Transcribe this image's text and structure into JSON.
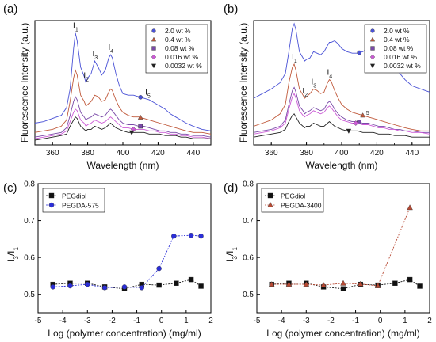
{
  "chart_data": [
    {
      "id": "a",
      "type": "line",
      "panel_label": "(a)",
      "xlabel": "Wavelength (nm)",
      "ylabel": "Fluorescence Intensity (a.u.)",
      "xlim": [
        350,
        450
      ],
      "xticks": [
        360,
        380,
        400,
        420,
        440
      ],
      "legend": {
        "placement": "top-right"
      },
      "peaks": [
        {
          "label": "I",
          "sub": "1",
          "x": 373
        },
        {
          "label": "I",
          "sub": "2",
          "x": 379
        },
        {
          "label": "I",
          "sub": "3",
          "x": 384
        },
        {
          "label": "I",
          "sub": "4",
          "x": 393
        },
        {
          "label": "I",
          "sub": "5",
          "x": 414
        }
      ],
      "x": [
        350,
        355,
        360,
        365,
        368,
        370,
        372,
        373,
        374,
        376,
        378,
        379,
        380,
        382,
        384,
        386,
        388,
        390,
        392,
        393,
        394,
        396,
        398,
        400,
        403,
        406,
        409,
        412,
        415,
        418,
        421,
        424,
        427,
        430,
        433,
        436,
        440,
        445,
        450
      ],
      "series": [
        {
          "name": "2.0 wt %",
          "color": "#4a52d6",
          "marker": "circle",
          "marker_x": 410,
          "values": [
            0.26,
            0.27,
            0.29,
            0.31,
            0.36,
            0.48,
            0.74,
            0.84,
            0.79,
            0.62,
            0.56,
            0.52,
            0.55,
            0.58,
            0.66,
            0.62,
            0.57,
            0.6,
            0.68,
            0.7,
            0.68,
            0.58,
            0.5,
            0.45,
            0.44,
            0.44,
            0.43,
            0.42,
            0.41,
            0.39,
            0.37,
            0.35,
            0.32,
            0.3,
            0.28,
            0.26,
            0.24,
            0.22,
            0.21
          ]
        },
        {
          "name": "0.4 wt %",
          "color": "#c05a3c",
          "marker": "triangle-up",
          "marker_x": 410,
          "values": [
            0.2,
            0.21,
            0.22,
            0.24,
            0.28,
            0.4,
            0.55,
            0.6,
            0.57,
            0.44,
            0.4,
            0.37,
            0.38,
            0.4,
            0.44,
            0.43,
            0.4,
            0.41,
            0.46,
            0.48,
            0.47,
            0.41,
            0.36,
            0.33,
            0.31,
            0.3,
            0.3,
            0.29,
            0.28,
            0.27,
            0.26,
            0.25,
            0.24,
            0.23,
            0.22,
            0.21,
            0.2,
            0.2,
            0.19
          ]
        },
        {
          "name": "0.08 wt %",
          "color": "#7a4aa8",
          "marker": "square",
          "marker_x": 410,
          "values": [
            0.17,
            0.18,
            0.19,
            0.2,
            0.23,
            0.31,
            0.4,
            0.43,
            0.41,
            0.33,
            0.3,
            0.28,
            0.29,
            0.3,
            0.32,
            0.31,
            0.3,
            0.31,
            0.34,
            0.35,
            0.34,
            0.31,
            0.28,
            0.26,
            0.25,
            0.25,
            0.24,
            0.24,
            0.23,
            0.22,
            0.21,
            0.21,
            0.2,
            0.2,
            0.19,
            0.19,
            0.18,
            0.18,
            0.17
          ]
        },
        {
          "name": "0.016 wt %",
          "color": "#cc5bd6",
          "marker": "diamond",
          "marker_x": 406,
          "values": [
            0.16,
            0.17,
            0.18,
            0.19,
            0.21,
            0.27,
            0.33,
            0.35,
            0.34,
            0.28,
            0.26,
            0.24,
            0.25,
            0.26,
            0.28,
            0.27,
            0.26,
            0.27,
            0.29,
            0.3,
            0.29,
            0.27,
            0.25,
            0.23,
            0.23,
            0.22,
            0.22,
            0.22,
            0.21,
            0.21,
            0.2,
            0.2,
            0.19,
            0.19,
            0.18,
            0.18,
            0.17,
            0.17,
            0.16
          ]
        },
        {
          "name": "0.0032 wt %",
          "color": "#222222",
          "marker": "triangle-down",
          "marker_x": 405,
          "values": [
            0.15,
            0.16,
            0.17,
            0.18,
            0.19,
            0.24,
            0.28,
            0.3,
            0.29,
            0.24,
            0.22,
            0.21,
            0.22,
            0.22,
            0.24,
            0.23,
            0.22,
            0.23,
            0.25,
            0.26,
            0.25,
            0.23,
            0.22,
            0.21,
            0.2,
            0.2,
            0.2,
            0.2,
            0.19,
            0.19,
            0.19,
            0.18,
            0.18,
            0.18,
            0.17,
            0.17,
            0.16,
            0.16,
            0.16
          ]
        }
      ]
    },
    {
      "id": "b",
      "type": "line",
      "panel_label": "(b)",
      "xlabel": "Wavelength (nm)",
      "ylabel": "Fluorescence Intensity (a.u.)",
      "xlim": [
        350,
        450
      ],
      "xticks": [
        360,
        380,
        400,
        420,
        440
      ],
      "legend": {
        "placement": "top-right"
      },
      "peaks": [
        {
          "label": "I",
          "sub": "1",
          "x": 373
        },
        {
          "label": "I",
          "sub": "2",
          "x": 379
        },
        {
          "label": "I",
          "sub": "3",
          "x": 384
        },
        {
          "label": "I",
          "sub": "4",
          "x": 393
        },
        {
          "label": "I",
          "sub": "5",
          "x": 414
        }
      ],
      "x": [
        350,
        355,
        360,
        365,
        368,
        370,
        372,
        373,
        374,
        376,
        378,
        379,
        380,
        382,
        384,
        386,
        388,
        390,
        392,
        393,
        394,
        396,
        398,
        400,
        403,
        406,
        409,
        412,
        415,
        418,
        421,
        424,
        427,
        430,
        433,
        436,
        440,
        445,
        450
      ],
      "series": [
        {
          "name": "2.0 wt %",
          "color": "#4a52d6",
          "marker": "circle",
          "marker_x": 410,
          "values": [
            0.42,
            0.45,
            0.48,
            0.52,
            0.58,
            0.72,
            0.87,
            0.9,
            0.86,
            0.72,
            0.68,
            0.66,
            0.67,
            0.68,
            0.72,
            0.71,
            0.7,
            0.72,
            0.76,
            0.78,
            0.78,
            0.79,
            0.77,
            0.74,
            0.72,
            0.71,
            0.71,
            0.72,
            0.74,
            0.76,
            0.78,
            0.76,
            0.7,
            0.64,
            0.58,
            0.54,
            0.5,
            0.48,
            0.46
          ]
        },
        {
          "name": "0.4 wt %",
          "color": "#c05a3c",
          "marker": "triangle-up",
          "marker_x": 412,
          "values": [
            0.24,
            0.26,
            0.28,
            0.32,
            0.38,
            0.52,
            0.62,
            0.64,
            0.6,
            0.48,
            0.44,
            0.42,
            0.43,
            0.45,
            0.48,
            0.47,
            0.45,
            0.46,
            0.52,
            0.54,
            0.53,
            0.47,
            0.42,
            0.38,
            0.35,
            0.33,
            0.32,
            0.31,
            0.3,
            0.29,
            0.28,
            0.27,
            0.26,
            0.25,
            0.24,
            0.23,
            0.22,
            0.21,
            0.21
          ]
        },
        {
          "name": "0.08 wt %",
          "color": "#7a4aa8",
          "marker": "square",
          "marker_x": 410,
          "values": [
            0.2,
            0.21,
            0.22,
            0.24,
            0.28,
            0.38,
            0.47,
            0.49,
            0.46,
            0.37,
            0.34,
            0.32,
            0.33,
            0.34,
            0.36,
            0.35,
            0.34,
            0.35,
            0.39,
            0.4,
            0.39,
            0.35,
            0.32,
            0.3,
            0.28,
            0.27,
            0.27,
            0.26,
            0.26,
            0.25,
            0.24,
            0.24,
            0.23,
            0.22,
            0.22,
            0.21,
            0.21,
            0.2,
            0.2
          ]
        },
        {
          "name": "0.016 wt %",
          "color": "#cc5bd6",
          "marker": "diamond",
          "marker_x": 408,
          "values": [
            0.19,
            0.2,
            0.21,
            0.23,
            0.26,
            0.35,
            0.43,
            0.45,
            0.42,
            0.34,
            0.31,
            0.3,
            0.31,
            0.32,
            0.34,
            0.33,
            0.32,
            0.33,
            0.36,
            0.37,
            0.36,
            0.33,
            0.3,
            0.28,
            0.27,
            0.26,
            0.26,
            0.25,
            0.25,
            0.24,
            0.23,
            0.23,
            0.22,
            0.22,
            0.21,
            0.21,
            0.2,
            0.2,
            0.19
          ]
        },
        {
          "name": "0.0032 wt %",
          "color": "#222222",
          "marker": "triangle-down",
          "marker_x": 404,
          "values": [
            0.17,
            0.18,
            0.19,
            0.2,
            0.22,
            0.27,
            0.31,
            0.32,
            0.3,
            0.26,
            0.24,
            0.23,
            0.24,
            0.24,
            0.26,
            0.25,
            0.24,
            0.24,
            0.26,
            0.27,
            0.26,
            0.24,
            0.23,
            0.22,
            0.21,
            0.21,
            0.21,
            0.2,
            0.2,
            0.2,
            0.19,
            0.19,
            0.19,
            0.18,
            0.18,
            0.18,
            0.17,
            0.17,
            0.17
          ]
        }
      ]
    },
    {
      "id": "c",
      "type": "line",
      "panel_label": "(c)",
      "xlabel": "Log (polymer concentration) (mg/ml)",
      "ylabel": "I3/I1",
      "xlim": [
        -5,
        2
      ],
      "ylim": [
        0.45,
        0.8
      ],
      "xticks": [
        -5,
        -4,
        -3,
        -2,
        -1,
        0,
        1,
        2
      ],
      "yticks": [
        0.5,
        0.6,
        0.7,
        0.8
      ],
      "legend": {
        "placement": "top-left"
      },
      "series": [
        {
          "name": "PEGdiol",
          "color": "#111111",
          "marker": "square",
          "x": [
            -4.4,
            -3.7,
            -3.0,
            -2.3,
            -1.5,
            -0.8,
            -0.1,
            0.6,
            1.2,
            1.6
          ],
          "values": [
            0.527,
            0.53,
            0.53,
            0.52,
            0.515,
            0.527,
            0.525,
            0.53,
            0.54,
            0.522
          ]
        },
        {
          "name": "PEGDA-575",
          "color": "#2b2ed8",
          "marker": "circle",
          "x": [
            -4.4,
            -3.7,
            -3.0,
            -2.3,
            -1.5,
            -0.8,
            -0.1,
            0.5,
            1.2,
            1.6
          ],
          "values": [
            0.52,
            0.523,
            0.527,
            0.518,
            0.52,
            0.518,
            0.57,
            0.658,
            0.66,
            0.658
          ]
        }
      ]
    },
    {
      "id": "d",
      "type": "line",
      "panel_label": "(d)",
      "xlabel": "Log (polymer concentration) (mg/ml)",
      "ylabel": "I3/I1",
      "xlim": [
        -5,
        2
      ],
      "ylim": [
        0.45,
        0.8
      ],
      "xticks": [
        -5,
        -4,
        -3,
        -2,
        -1,
        0,
        1,
        2
      ],
      "yticks": [
        0.5,
        0.6,
        0.7,
        0.8
      ],
      "legend": {
        "placement": "top-left"
      },
      "series": [
        {
          "name": "PEGdiol",
          "color": "#111111",
          "marker": "square",
          "x": [
            -4.4,
            -3.7,
            -3.0,
            -2.3,
            -1.5,
            -0.8,
            -0.1,
            0.6,
            1.2,
            1.6
          ],
          "values": [
            0.527,
            0.53,
            0.53,
            0.52,
            0.515,
            0.527,
            0.525,
            0.53,
            0.54,
            0.522
          ]
        },
        {
          "name": "PEGDA-3400",
          "color": "#b84a34",
          "marker": "triangle-up",
          "x": [
            -4.4,
            -3.7,
            -3.0,
            -2.3,
            -1.5,
            -0.8,
            -0.1,
            1.2
          ],
          "values": [
            0.527,
            0.527,
            0.527,
            0.525,
            0.53,
            0.528,
            0.523,
            0.735
          ]
        }
      ]
    }
  ]
}
